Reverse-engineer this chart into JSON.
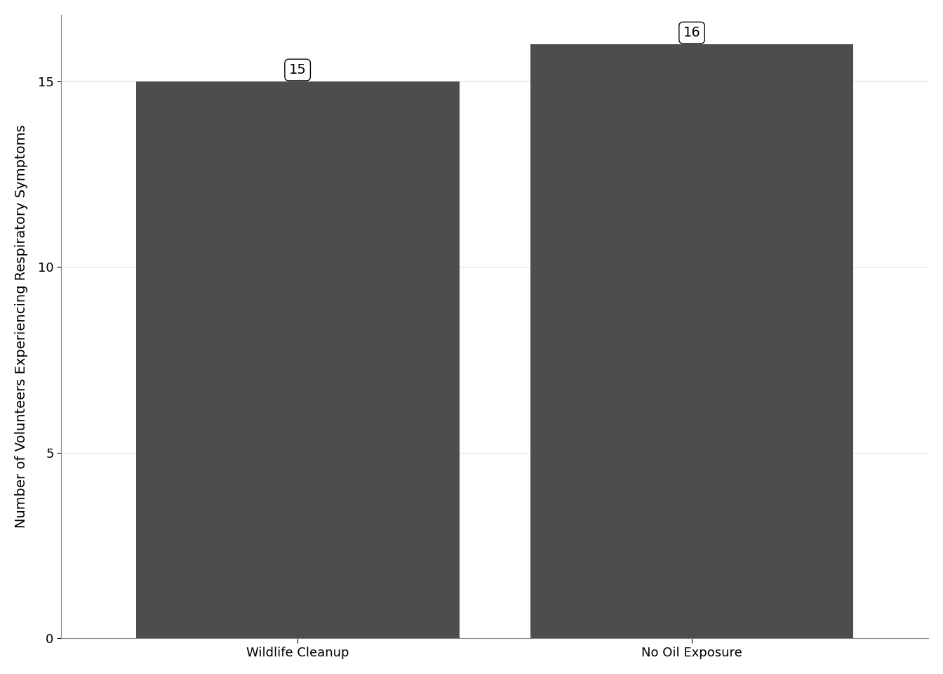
{
  "categories": [
    "Wildlife Cleanup",
    "No Oil Exposure"
  ],
  "values": [
    15,
    16
  ],
  "bar_color": "#4d4d4d",
  "ylabel": "Number of Volunteers Experiencing Respiratory Symptoms",
  "ylim": [
    0,
    16.8
  ],
  "yticks": [
    0,
    5,
    10,
    15
  ],
  "background_color": "#ffffff",
  "grid_color": "#e0e0e0",
  "label_fontsize": 14,
  "tick_fontsize": 13,
  "bar_labels": [
    "15",
    "16"
  ],
  "bar_width": 0.82
}
